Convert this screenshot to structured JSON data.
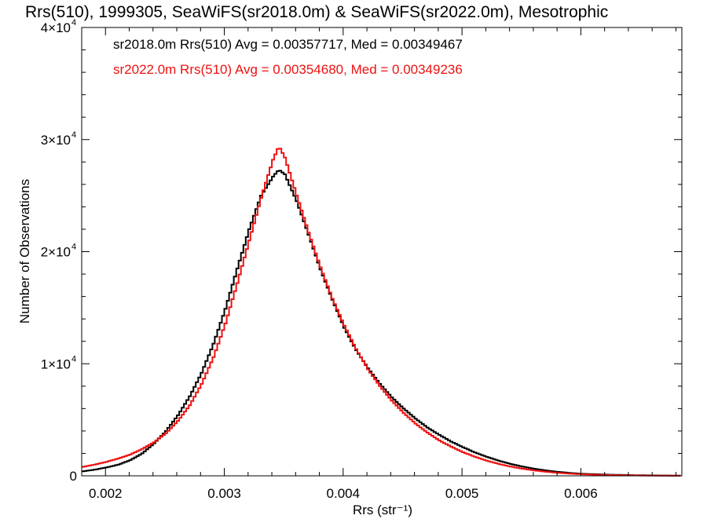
{
  "chart_data": {
    "type": "line",
    "title": "Rrs(510), 1999305, SeaWiFS(sr2018.0m) & SeaWiFS(sr2022.0m), Mesotrophic",
    "xlabel": "Rrs (str⁻¹)",
    "ylabel": "Number of Observations",
    "xlim": [
      0.0018,
      0.00685
    ],
    "ylim": [
      0,
      40000
    ],
    "x_ticks": [
      0.002,
      0.003,
      0.004,
      0.005,
      0.006
    ],
    "x_tick_labels": [
      "0.002",
      "0.003",
      "0.004",
      "0.005",
      "0.006"
    ],
    "y_ticks": [
      0,
      10000,
      20000,
      30000,
      40000
    ],
    "y_tick_labels": [
      {
        "base": "0",
        "exp": ""
      },
      {
        "base": "1×10",
        "exp": "4"
      },
      {
        "base": "2×10",
        "exp": "4"
      },
      {
        "base": "3×10",
        "exp": "4"
      },
      {
        "base": "4×10",
        "exp": "4"
      }
    ],
    "grid": false,
    "legend_position": "top-left",
    "series": [
      {
        "name": "sr2018.0m",
        "legend": "sr2018.0m Rrs(510) Avg = 0.00357717, Med = 0.00349467",
        "color": "#000000",
        "x": [
          0.0018,
          0.0019,
          0.002,
          0.0021,
          0.0022,
          0.0023,
          0.0024,
          0.0025,
          0.0026,
          0.0027,
          0.0028,
          0.0029,
          0.003,
          0.0031,
          0.0032,
          0.0033,
          0.0034,
          0.00345,
          0.0035,
          0.0036,
          0.0037,
          0.0038,
          0.0039,
          0.004,
          0.0041,
          0.0042,
          0.0043,
          0.0044,
          0.0045,
          0.0046,
          0.0047,
          0.0048,
          0.0049,
          0.005,
          0.0051,
          0.0052,
          0.0053,
          0.0054,
          0.0055,
          0.0056,
          0.0057,
          0.0058,
          0.0059,
          0.006,
          0.0062,
          0.0064,
          0.0066,
          0.00685
        ],
        "y": [
          400,
          550,
          750,
          1000,
          1400,
          2000,
          2900,
          4000,
          5400,
          7100,
          9200,
          11800,
          14900,
          18500,
          22000,
          25000,
          26700,
          27300,
          26900,
          24500,
          21500,
          18400,
          15700,
          13200,
          11200,
          9600,
          8200,
          7000,
          6000,
          5100,
          4300,
          3650,
          3050,
          2550,
          2080,
          1690,
          1350,
          1060,
          820,
          630,
          470,
          350,
          255,
          180,
          110,
          65,
          35,
          15
        ]
      },
      {
        "name": "sr2022.0m",
        "legend": "sr2022.0m Rrs(510) Avg = 0.00354680, Med = 0.00349236",
        "color": "#ee1111",
        "x": [
          0.0018,
          0.0019,
          0.002,
          0.0021,
          0.0022,
          0.0023,
          0.0024,
          0.0025,
          0.0026,
          0.0027,
          0.0028,
          0.0029,
          0.003,
          0.0031,
          0.0032,
          0.0033,
          0.0034,
          0.00345,
          0.0035,
          0.0036,
          0.0037,
          0.0038,
          0.0039,
          0.004,
          0.0041,
          0.0042,
          0.0043,
          0.0044,
          0.0045,
          0.0046,
          0.0047,
          0.0048,
          0.0049,
          0.005,
          0.0051,
          0.0052,
          0.0053,
          0.0054,
          0.0055,
          0.0056,
          0.0057,
          0.0058,
          0.0059,
          0.006,
          0.0062,
          0.0064,
          0.0066,
          0.00685
        ],
        "y": [
          800,
          1000,
          1250,
          1550,
          1900,
          2400,
          3000,
          3800,
          4900,
          6300,
          8200,
          10600,
          13600,
          17200,
          21000,
          24800,
          28200,
          29400,
          28400,
          25000,
          21700,
          18600,
          15800,
          13400,
          11300,
          9500,
          8000,
          6700,
          5600,
          4650,
          3850,
          3150,
          2600,
          2100,
          1700,
          1350,
          1060,
          820,
          630,
          480,
          360,
          265,
          195,
          140,
          75,
          40,
          20,
          8
        ]
      }
    ]
  }
}
